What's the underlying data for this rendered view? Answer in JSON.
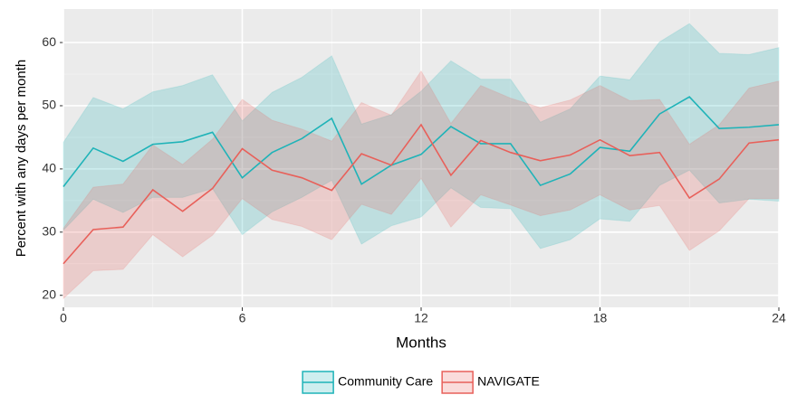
{
  "chart_data": {
    "type": "ribbon-line",
    "x_label": "Months",
    "y_label": "Percent with any days per month",
    "x": [
      0,
      1,
      2,
      3,
      4,
      5,
      6,
      7,
      8,
      9,
      10,
      11,
      12,
      13,
      14,
      15,
      16,
      17,
      18,
      19,
      20,
      21,
      22,
      23,
      24
    ],
    "xlim": [
      0,
      24
    ],
    "xticks": [
      0,
      6,
      12,
      18,
      24
    ],
    "ylim": [
      18.1,
      65.3
    ],
    "yticks": [
      20,
      30,
      40,
      50,
      60
    ],
    "grid": true,
    "legend": "bottom",
    "series": [
      {
        "name": "Community Care",
        "color": "#1fb3b8",
        "values": [
          37.2,
          43.3,
          41.2,
          43.9,
          44.3,
          45.8,
          38.6,
          42.6,
          44.8,
          48.0,
          37.6,
          40.6,
          42.3,
          46.7,
          44.0,
          44.0,
          37.4,
          39.2,
          43.4,
          42.8,
          48.7,
          51.4,
          46.4,
          46.6,
          47.0
        ],
        "upper": [
          44.2,
          51.3,
          49.5,
          52.2,
          53.2,
          54.9,
          47.6,
          52.1,
          54.5,
          57.9,
          47.1,
          48.6,
          52.3,
          57.1,
          54.2,
          54.2,
          47.4,
          49.5,
          54.7,
          54.1,
          60.1,
          63.0,
          58.3,
          58.1,
          59.2
        ],
        "lower": [
          30.3,
          35.2,
          33.1,
          35.5,
          35.5,
          36.9,
          29.6,
          33.2,
          35.5,
          38.2,
          28.1,
          31.0,
          32.4,
          37.0,
          33.9,
          33.7,
          27.4,
          28.8,
          32.1,
          31.7,
          37.4,
          39.8,
          34.6,
          35.2,
          34.9
        ]
      },
      {
        "name": "NAVIGATE",
        "color": "#e8605a",
        "values": [
          25.0,
          30.4,
          30.8,
          36.7,
          33.3,
          36.9,
          43.2,
          39.8,
          38.6,
          36.6,
          42.4,
          40.6,
          47.0,
          39.0,
          44.5,
          42.6,
          41.3,
          42.2,
          44.6,
          42.1,
          42.6,
          35.4,
          38.4,
          44.1,
          44.6
        ],
        "upper": [
          30.6,
          37.1,
          37.6,
          43.8,
          40.7,
          44.7,
          51.0,
          47.7,
          46.3,
          44.4,
          50.5,
          48.5,
          55.5,
          47.2,
          53.2,
          51.2,
          49.7,
          50.9,
          53.2,
          50.8,
          51.0,
          43.9,
          47.0,
          52.8,
          53.9
        ],
        "lower": [
          19.5,
          23.9,
          24.1,
          29.6,
          26.1,
          29.5,
          35.3,
          32.0,
          30.9,
          28.8,
          34.4,
          32.8,
          38.5,
          30.8,
          35.9,
          34.3,
          32.6,
          33.5,
          35.9,
          33.5,
          34.2,
          27.1,
          30.2,
          35.3,
          35.3
        ]
      }
    ]
  }
}
